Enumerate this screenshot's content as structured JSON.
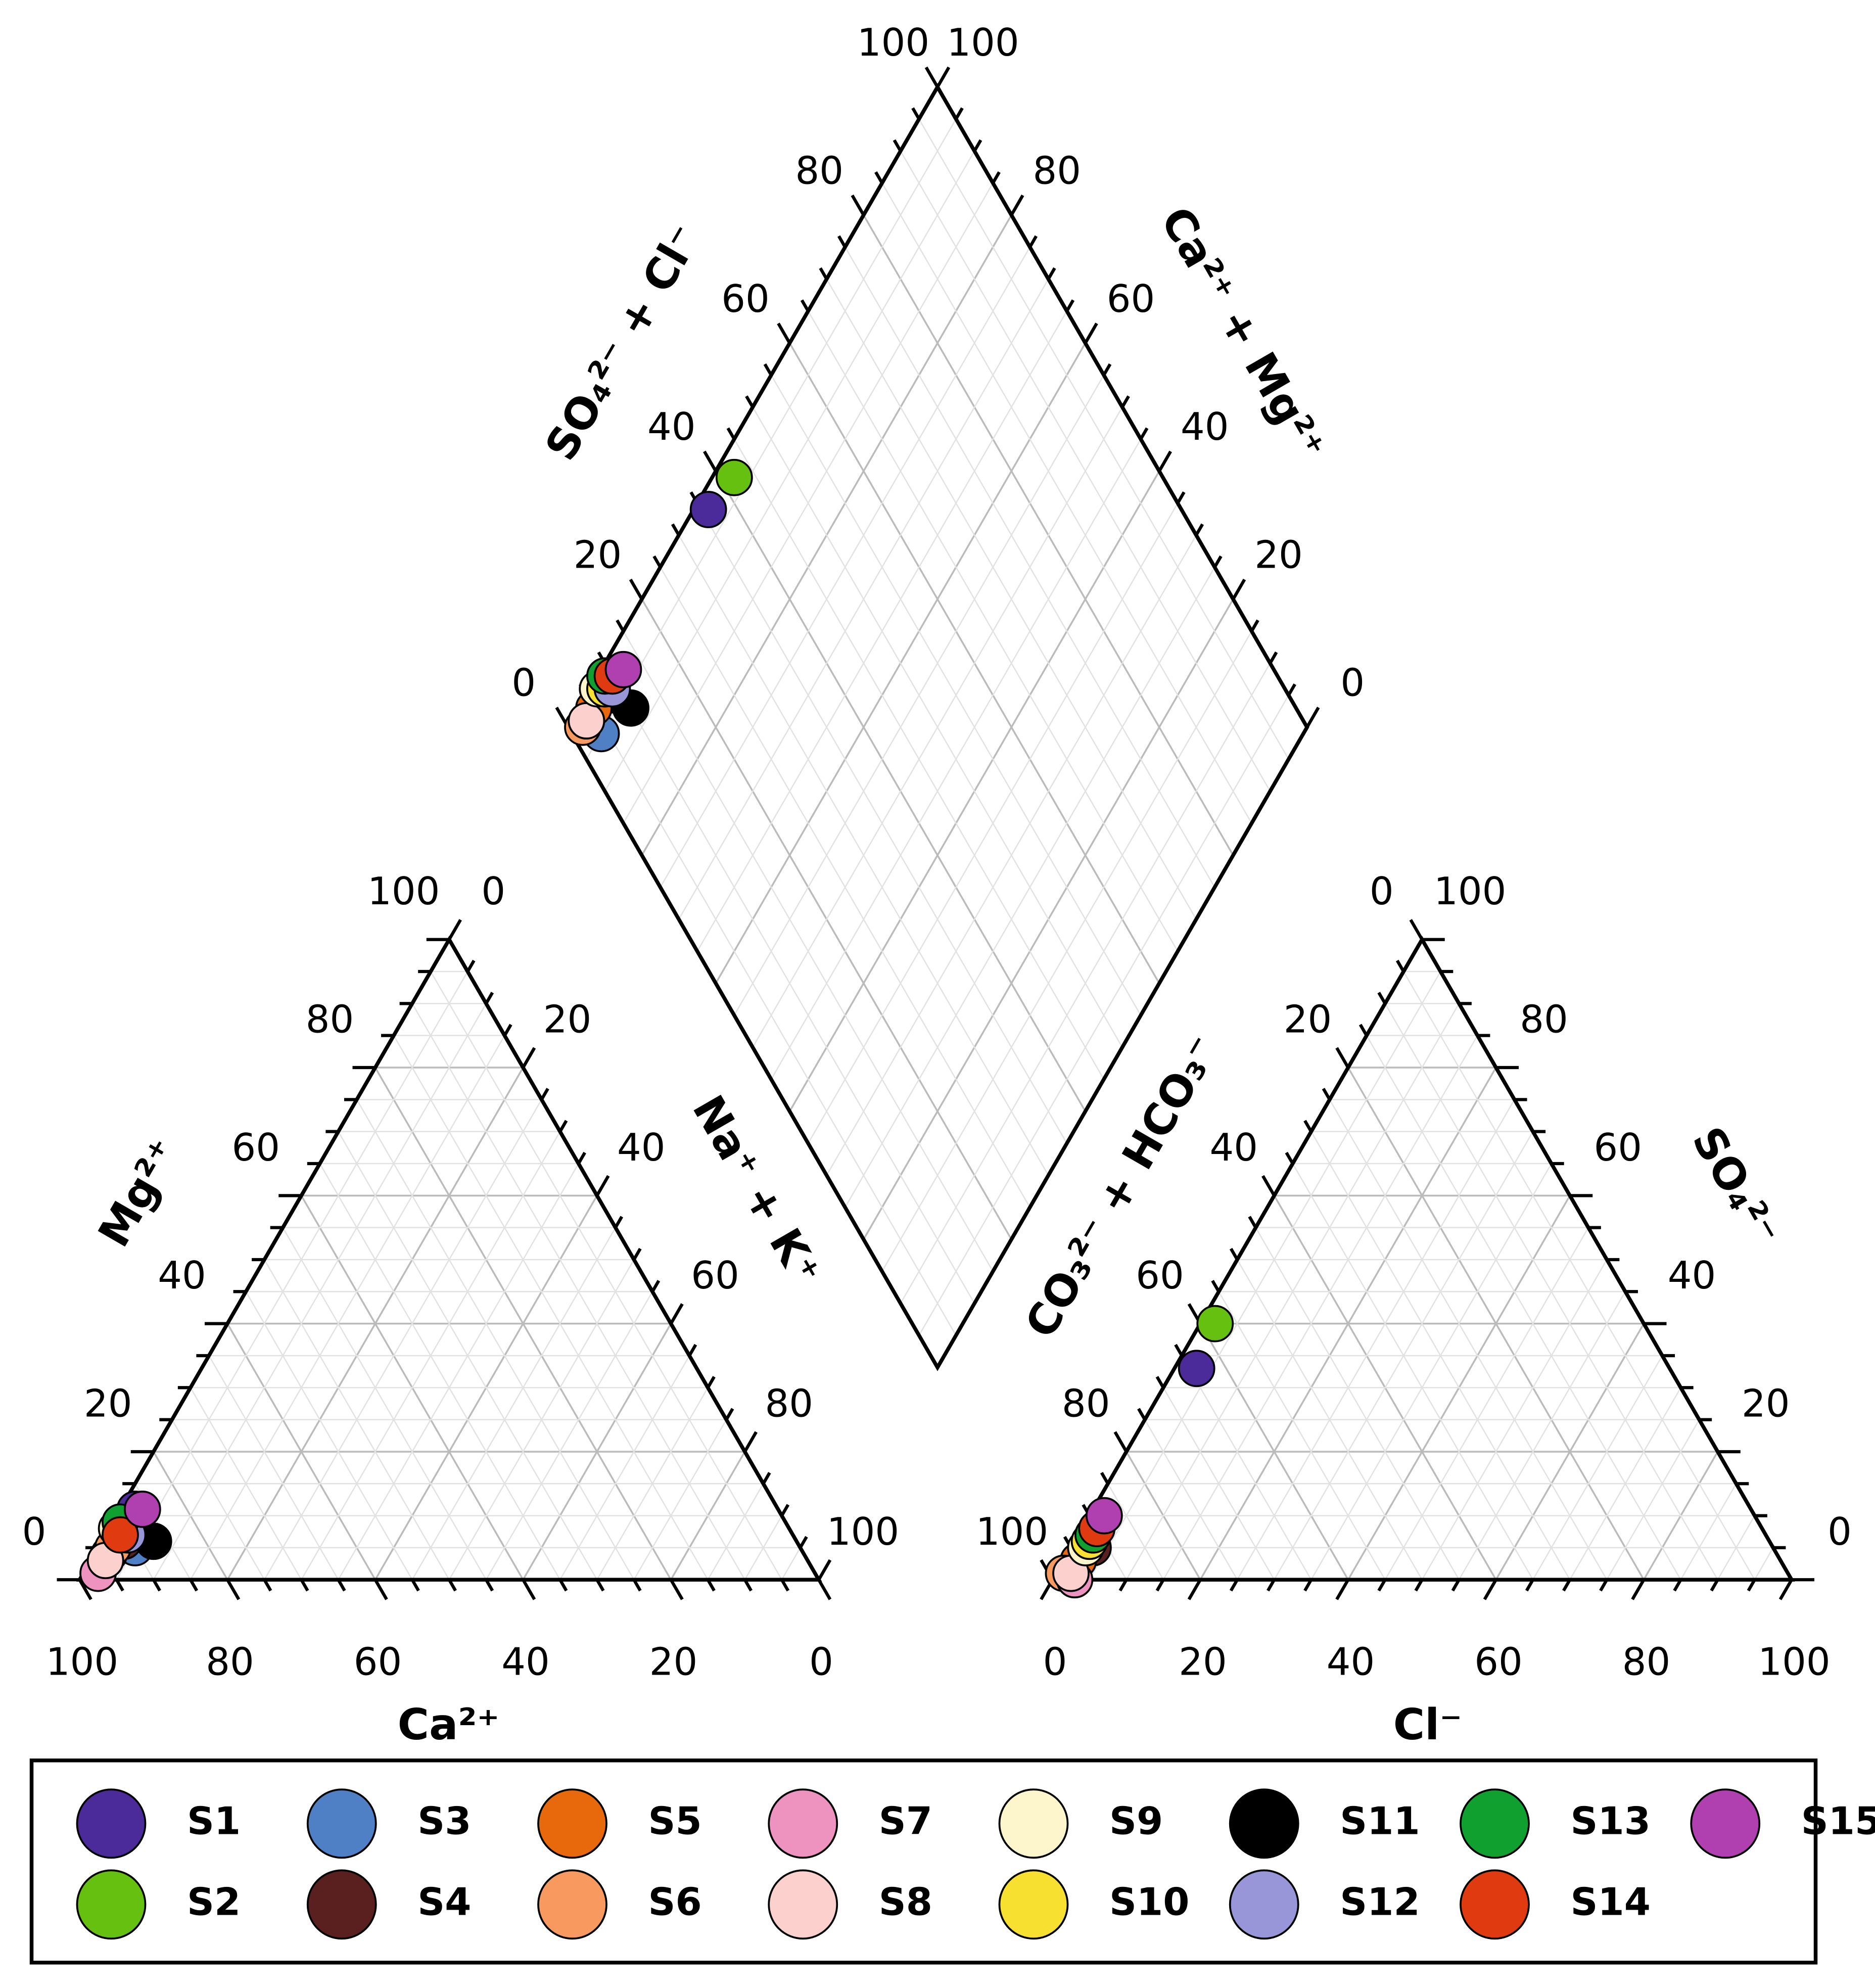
{
  "chart_data": {
    "type": "piper",
    "components": [
      "Ca²⁺",
      "Mg²⁺",
      "Na⁺ + K⁺",
      "CO₃²⁻ + HCO₃⁻",
      "SO₄²⁻",
      "Cl⁻"
    ],
    "diamond_axes": [
      "SO₄²⁻ + Cl⁻",
      "Ca²⁺ + Mg²⁺"
    ],
    "ticks": [
      0,
      20,
      40,
      60,
      80,
      100
    ],
    "minor_ticks": [
      5,
      10,
      15,
      25,
      30,
      35,
      45,
      50,
      55,
      65,
      70,
      75,
      85,
      90,
      95
    ],
    "grid": true,
    "series": [
      {
        "name": "S1",
        "color": "#4b2a9a",
        "values": [
          87,
          11,
          2,
          64,
          33,
          3
        ]
      },
      {
        "name": "S2",
        "color": "#66c010",
        "values": [
          88,
          9,
          3,
          58,
          40,
          2
        ]
      },
      {
        "name": "S3",
        "color": "#4f7fc4",
        "values": [
          90,
          5,
          5,
          96,
          2,
          2
        ]
      },
      {
        "name": "S4",
        "color": "#5a2020",
        "values": [
          91,
          6,
          3,
          92,
          5,
          3
        ]
      },
      {
        "name": "S5",
        "color": "#e8680c",
        "values": [
          94,
          4,
          2,
          95,
          3,
          2
        ]
      },
      {
        "name": "S6",
        "color": "#f89a60",
        "values": [
          93,
          5,
          2,
          98,
          1,
          1
        ]
      },
      {
        "name": "S7",
        "color": "#ee92c0",
        "values": [
          97,
          1,
          2,
          97,
          0,
          3
        ]
      },
      {
        "name": "S8",
        "color": "#fcd0cc",
        "values": [
          95,
          3,
          2,
          97,
          1,
          2
        ]
      },
      {
        "name": "S9",
        "color": "#fdf5cc",
        "values": [
          91,
          8,
          1,
          93,
          5,
          2
        ]
      },
      {
        "name": "S10",
        "color": "#f8e030",
        "values": [
          90,
          8,
          2,
          92,
          6,
          2
        ]
      },
      {
        "name": "S11",
        "color": "#000000",
        "values": [
          87,
          6,
          7,
          90,
          8,
          2
        ]
      },
      {
        "name": "S12",
        "color": "#9896d8",
        "values": [
          90,
          7,
          3,
          91,
          7,
          2
        ]
      },
      {
        "name": "S13",
        "color": "#10a030",
        "values": [
          90,
          9,
          1,
          91,
          7,
          2
        ]
      },
      {
        "name": "S14",
        "color": "#e03a10",
        "values": [
          91,
          7,
          2,
          90,
          8,
          2
        ]
      },
      {
        "name": "S15",
        "color": "#b040b0",
        "values": [
          86,
          11,
          3,
          88,
          10,
          2
        ]
      }
    ]
  }
}
